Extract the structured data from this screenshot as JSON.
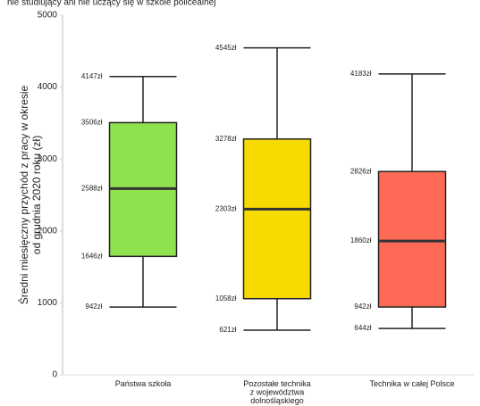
{
  "chart_data": {
    "type": "box",
    "title": "nie studiujący ani nie uczący się w szkole policealnej",
    "ylabel": [
      "Średni miesięczny przychód z pracy w okresie",
      "od grudnia 2020 roku (zł)"
    ],
    "categories": [
      [
        "Państwa szkoła"
      ],
      [
        "Pozostałe technika",
        "z województwa",
        "dolnośląskiego"
      ],
      [
        "Technika w całej Polsce"
      ]
    ],
    "boxes": [
      {
        "color": "#8fe14f",
        "min": 942,
        "q1": 1646,
        "median": 2588,
        "q3": 3506,
        "max": 4147,
        "value_labels": {
          "min": "942zł",
          "q1": "1646zł",
          "median": "2588zł",
          "q3": "3506zł",
          "max": "4147zł"
        }
      },
      {
        "color": "#f7da00",
        "min": 621,
        "q1": 1058,
        "median": 2303,
        "q3": 3278,
        "max": 4545,
        "value_labels": {
          "min": "621zł",
          "q1": "1058zł",
          "median": "2303zł",
          "q3": "3278zł",
          "max": "4545zł"
        }
      },
      {
        "color": "#fe6a56",
        "min": 644,
        "q1": 942,
        "median": 1860,
        "q3": 2826,
        "max": 4183,
        "value_labels": {
          "min": "644zł",
          "q1": "942zł",
          "median": "1860zł",
          "q3": "2826zł",
          "max": "4183zł"
        }
      }
    ],
    "ylim": [
      0,
      5000
    ],
    "yticks": [
      0,
      1000,
      2000,
      3000,
      4000,
      5000
    ],
    "grid": false
  }
}
